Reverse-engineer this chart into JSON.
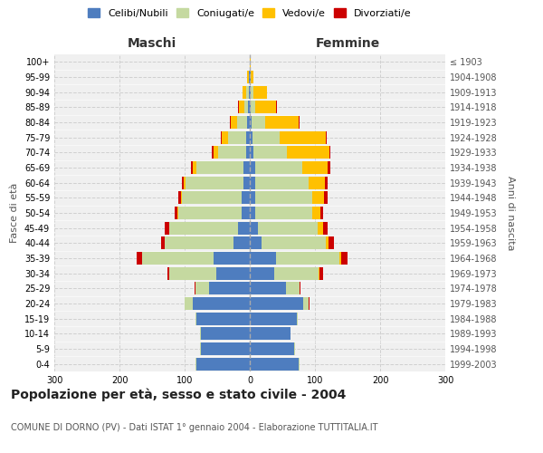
{
  "age_groups": [
    "0-4",
    "5-9",
    "10-14",
    "15-19",
    "20-24",
    "25-29",
    "30-34",
    "35-39",
    "40-44",
    "45-49",
    "50-54",
    "55-59",
    "60-64",
    "65-69",
    "70-74",
    "75-79",
    "80-84",
    "85-89",
    "90-94",
    "95-99",
    "100+"
  ],
  "birth_years": [
    "1999-2003",
    "1994-1998",
    "1989-1993",
    "1984-1988",
    "1979-1983",
    "1974-1978",
    "1969-1973",
    "1964-1968",
    "1959-1963",
    "1954-1958",
    "1949-1953",
    "1944-1948",
    "1939-1943",
    "1934-1938",
    "1929-1933",
    "1924-1928",
    "1919-1923",
    "1914-1918",
    "1909-1913",
    "1904-1908",
    "≤ 1903"
  ],
  "colors": {
    "celibi": "#4e7dbf",
    "coniugati": "#c5d9a0",
    "vedovi": "#ffc000",
    "divorziati": "#cc0000"
  },
  "m_celibi": [
    82,
    75,
    75,
    82,
    88,
    62,
    52,
    55,
    25,
    18,
    12,
    12,
    10,
    10,
    6,
    5,
    4,
    3,
    2,
    1,
    0
  ],
  "m_coniugati": [
    1,
    1,
    1,
    1,
    12,
    22,
    72,
    110,
    105,
    105,
    98,
    92,
    88,
    72,
    42,
    28,
    15,
    6,
    4,
    1,
    0
  ],
  "m_vedovi": [
    0,
    0,
    0,
    0,
    0,
    0,
    0,
    0,
    1,
    1,
    1,
    2,
    3,
    5,
    8,
    10,
    10,
    8,
    5,
    2,
    0
  ],
  "m_divorziati": [
    0,
    0,
    0,
    0,
    0,
    1,
    2,
    8,
    5,
    6,
    4,
    4,
    3,
    3,
    2,
    1,
    1,
    1,
    0,
    0,
    0
  ],
  "f_celibi": [
    75,
    68,
    62,
    72,
    82,
    55,
    38,
    40,
    18,
    12,
    8,
    8,
    8,
    8,
    5,
    4,
    3,
    2,
    2,
    1,
    0
  ],
  "f_coniugati": [
    1,
    1,
    1,
    1,
    8,
    22,
    68,
    98,
    98,
    92,
    88,
    88,
    82,
    72,
    52,
    42,
    20,
    6,
    3,
    1,
    0
  ],
  "f_vedovi": [
    0,
    0,
    0,
    0,
    0,
    0,
    1,
    2,
    5,
    8,
    12,
    18,
    25,
    40,
    65,
    70,
    52,
    32,
    22,
    4,
    1
  ],
  "f_divorziati": [
    0,
    0,
    0,
    0,
    1,
    1,
    5,
    10,
    8,
    8,
    5,
    5,
    5,
    3,
    2,
    2,
    1,
    1,
    0,
    0,
    0
  ],
  "title": "Popolazione per età, sesso e stato civile - 2004",
  "subtitle": "COMUNE DI DORNO (PV) - Dati ISTAT 1° gennaio 2004 - Elaborazione TUTTITALIA.IT",
  "xlabel_left": "Maschi",
  "xlabel_right": "Femmine",
  "ylabel_left": "Fasce di età",
  "ylabel_right": "Anni di nascita",
  "xlim": 300,
  "legend_labels": [
    "Celibi/Nubili",
    "Coniugati/e",
    "Vedovi/e",
    "Divorziati/e"
  ],
  "background_color": "#ffffff",
  "grid_color": "#cccccc"
}
